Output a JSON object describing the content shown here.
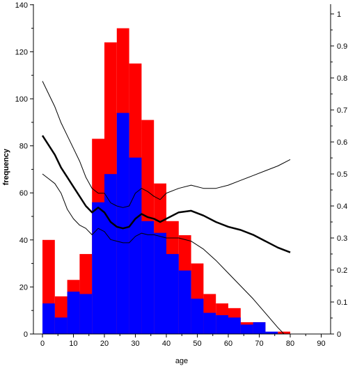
{
  "chart_data": {
    "type": "bar",
    "xlabel": "age",
    "ylabel": "frequency",
    "xlim": [
      -2,
      90
    ],
    "ylim": [
      0,
      140
    ],
    "y2lim": [
      0,
      1
    ],
    "xticks": [
      "0",
      "10",
      "20",
      "30",
      "40",
      "50",
      "60",
      "70",
      "80",
      "90"
    ],
    "yticks": [
      "0",
      "20",
      "40",
      "60",
      "80",
      "100",
      "120",
      "140"
    ],
    "y2ticks": [
      "0",
      "0.1",
      "0.2",
      "0.3",
      "0.4",
      "0.5",
      "0.6",
      "0.7",
      "0.8",
      "0.9",
      "1"
    ],
    "bin_edges": [
      0,
      4,
      8,
      12,
      16,
      20,
      24,
      28,
      32,
      36,
      40,
      44,
      48,
      52,
      56,
      60,
      64,
      68,
      72,
      76,
      80
    ],
    "series": [
      {
        "color": "#ff0000",
        "values": [
          40,
          16,
          23,
          34,
          83,
          124,
          130,
          115,
          91,
          64,
          48,
          42,
          30,
          17,
          13,
          11,
          5,
          5,
          0,
          1
        ]
      },
      {
        "color": "#0000ff",
        "values": [
          13,
          7,
          18,
          17,
          56,
          68,
          94,
          75,
          48,
          43,
          34,
          27,
          15,
          9,
          8,
          7,
          4,
          5,
          1,
          0
        ]
      }
    ],
    "curves": [
      {
        "style": "thick",
        "x": [
          0,
          2,
          4,
          6,
          8,
          10,
          12,
          14,
          16,
          18,
          20,
          22,
          24,
          26,
          28,
          30,
          32,
          34,
          36,
          38,
          40,
          44,
          48,
          52,
          56,
          60,
          64,
          68,
          72,
          76,
          80
        ],
        "y": [
          0.62,
          0.59,
          0.56,
          0.52,
          0.49,
          0.46,
          0.43,
          0.4,
          0.38,
          0.395,
          0.38,
          0.35,
          0.335,
          0.33,
          0.335,
          0.36,
          0.375,
          0.365,
          0.36,
          0.35,
          0.36,
          0.38,
          0.385,
          0.37,
          0.35,
          0.335,
          0.325,
          0.31,
          0.29,
          0.27,
          0.255
        ]
      },
      {
        "style": "thin",
        "x": [
          0,
          2,
          4,
          6,
          8,
          10,
          12,
          14,
          16,
          18,
          20,
          22,
          24,
          26,
          28,
          30,
          32,
          34,
          36,
          38,
          40,
          44,
          48,
          52,
          56,
          60,
          64,
          68,
          72,
          76,
          80
        ],
        "y": [
          0.79,
          0.75,
          0.71,
          0.66,
          0.62,
          0.58,
          0.54,
          0.49,
          0.455,
          0.44,
          0.44,
          0.41,
          0.4,
          0.395,
          0.4,
          0.44,
          0.455,
          0.445,
          0.43,
          0.42,
          0.44,
          0.455,
          0.465,
          0.455,
          0.455,
          0.465,
          0.48,
          0.495,
          0.51,
          0.525,
          0.545
        ]
      },
      {
        "style": "thin",
        "x": [
          0,
          2,
          4,
          6,
          8,
          10,
          12,
          14,
          16,
          18,
          20,
          22,
          24,
          26,
          28,
          30,
          32,
          34,
          36,
          38,
          40,
          44,
          48,
          52,
          56,
          60,
          64,
          68,
          72,
          76,
          78
        ],
        "y": [
          0.5,
          0.485,
          0.47,
          0.44,
          0.39,
          0.36,
          0.34,
          0.33,
          0.31,
          0.33,
          0.32,
          0.295,
          0.29,
          0.285,
          0.285,
          0.305,
          0.315,
          0.31,
          0.31,
          0.305,
          0.3,
          0.3,
          0.29,
          0.265,
          0.23,
          0.19,
          0.15,
          0.11,
          0.065,
          0.02,
          0.0
        ]
      }
    ]
  }
}
